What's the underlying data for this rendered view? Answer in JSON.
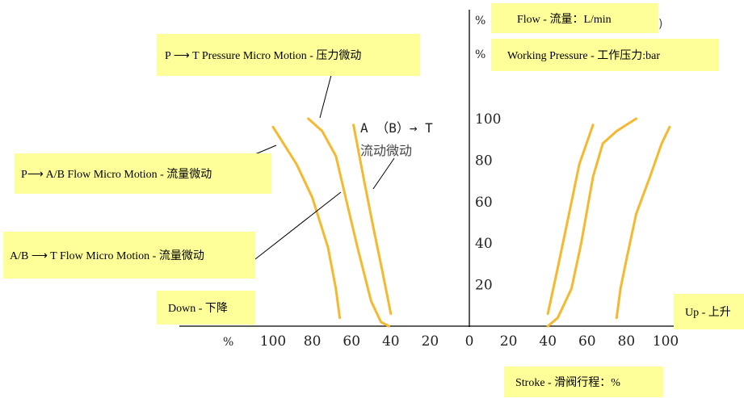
{
  "chart_data": {
    "type": "line",
    "title": "",
    "xlabel": "Stroke - 滑阀行程：%",
    "ylabel_flow": "Flow - 流量：L/min",
    "ylabel_pressure": "Working Pressure  -  工作压力:bar",
    "y_percent_mark_1": "%",
    "y_percent_mark_2": "%",
    "x_percent_mark": "%",
    "left_side_label": "Down - 下降",
    "right_side_label": "Up - 上升",
    "x_tick_labels_left": [
      "100",
      "80",
      "60",
      "40",
      "20"
    ],
    "x_tick_labels_right": [
      "0",
      "20",
      "40",
      "60",
      "80",
      "100"
    ],
    "y_tick_labels": [
      "20",
      "40",
      "60",
      "80",
      "100"
    ],
    "xlim": [
      -100,
      100
    ],
    "ylim": [
      0,
      100
    ],
    "annotations": {
      "pt_pressure": "P ⟶ T Pressure Micro Motion - 压力微动",
      "p_ab_flow": "P⟶ A/B Flow Micro Motion - 流量微动",
      "ab_t_flow": "A/B ⟶ T Flow Micro Motion - 流量微动",
      "abt_line1": "A （B）→ T",
      "abt_line2": "流动微动"
    },
    "series": [
      {
        "side": "down",
        "values": [
          [
            -100,
            96
          ],
          [
            -88,
            78
          ],
          [
            -80,
            62
          ],
          [
            -72,
            38
          ],
          [
            -68,
            18
          ],
          [
            -66,
            4
          ]
        ]
      },
      {
        "side": "down",
        "values": [
          [
            -82,
            100
          ],
          [
            -75,
            94
          ],
          [
            -68,
            82
          ],
          [
            -63,
            62
          ],
          [
            -57,
            38
          ],
          [
            -50,
            12
          ],
          [
            -45,
            2
          ],
          [
            -41,
            0
          ]
        ]
      },
      {
        "side": "down",
        "values": [
          [
            -59,
            97
          ],
          [
            -54,
            72
          ],
          [
            -49,
            48
          ],
          [
            -44,
            25
          ],
          [
            -40,
            6
          ]
        ]
      },
      {
        "side": "up",
        "values": [
          [
            40,
            6
          ],
          [
            45,
            28
          ],
          [
            51,
            55
          ],
          [
            56,
            78
          ],
          [
            63,
            97
          ]
        ]
      },
      {
        "side": "up",
        "values": [
          [
            40,
            0
          ],
          [
            45,
            4
          ],
          [
            52,
            18
          ],
          [
            57,
            40
          ],
          [
            63,
            72
          ],
          [
            68,
            88
          ],
          [
            75,
            94
          ],
          [
            85,
            100
          ]
        ]
      },
      {
        "side": "up",
        "values": [
          [
            75,
            4
          ],
          [
            77,
            18
          ],
          [
            80,
            32
          ],
          [
            85,
            54
          ],
          [
            92,
            72
          ],
          [
            98,
            88
          ],
          [
            102,
            96
          ]
        ]
      }
    ]
  }
}
